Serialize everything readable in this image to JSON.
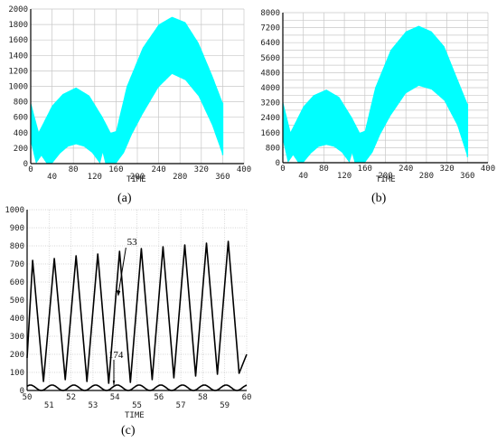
{
  "chart_data": [
    {
      "id": "a",
      "type": "area",
      "caption": "(a)",
      "xlabel": "TIME",
      "ylabel": "",
      "xlim": [
        0,
        400
      ],
      "ylim": [
        0,
        2000
      ],
      "x_ticks": [
        0,
        40,
        80,
        120,
        160,
        200,
        240,
        280,
        320,
        360,
        400
      ],
      "x_ticks_low": [
        40,
        120,
        200,
        280,
        360
      ],
      "y_ticks": [
        0,
        200,
        400,
        600,
        800,
        1000,
        1200,
        1400,
        1600,
        1800,
        2000
      ],
      "grid": true,
      "fill_color": "#00ffff",
      "upper_envelope": [
        [
          0,
          800
        ],
        [
          15,
          410
        ],
        [
          40,
          750
        ],
        [
          60,
          900
        ],
        [
          85,
          985
        ],
        [
          110,
          880
        ],
        [
          135,
          600
        ],
        [
          150,
          400
        ],
        [
          160,
          420
        ],
        [
          180,
          1000
        ],
        [
          210,
          1500
        ],
        [
          240,
          1800
        ],
        [
          265,
          1900
        ],
        [
          290,
          1830
        ],
        [
          315,
          1560
        ],
        [
          340,
          1150
        ],
        [
          360,
          790
        ]
      ],
      "lower_envelope": [
        [
          0,
          280
        ],
        [
          10,
          0
        ],
        [
          20,
          100
        ],
        [
          30,
          0
        ],
        [
          40,
          0
        ],
        [
          55,
          130
        ],
        [
          70,
          220
        ],
        [
          85,
          250
        ],
        [
          100,
          220
        ],
        [
          115,
          140
        ],
        [
          130,
          0
        ],
        [
          135,
          140
        ],
        [
          140,
          0
        ],
        [
          150,
          0
        ],
        [
          160,
          0
        ],
        [
          175,
          140
        ],
        [
          190,
          380
        ],
        [
          210,
          640
        ],
        [
          240,
          990
        ],
        [
          265,
          1160
        ],
        [
          290,
          1080
        ],
        [
          315,
          870
        ],
        [
          340,
          500
        ],
        [
          360,
          110
        ]
      ]
    },
    {
      "id": "b",
      "type": "area",
      "caption": "(b)",
      "xlabel": "TIME",
      "ylabel": "",
      "xlim": [
        0,
        400
      ],
      "ylim": [
        0,
        8000
      ],
      "x_ticks": [
        0,
        40,
        80,
        120,
        160,
        200,
        240,
        280,
        320,
        360,
        400
      ],
      "x_ticks_low": [
        40,
        120,
        200,
        280,
        360
      ],
      "y_ticks": [
        0,
        400,
        800,
        1200,
        1600,
        2000,
        2400,
        2800,
        3200,
        3600,
        4000,
        4400,
        4800,
        5200,
        5600,
        6000,
        6400,
        6800,
        7200,
        7600,
        8000
      ],
      "y_tick_labels_shown": [
        0,
        800,
        1600,
        2400,
        3200,
        4000,
        4800,
        5600,
        6400,
        7200,
        8000
      ],
      "grid": true,
      "fill_color": "#00ffff",
      "upper_envelope": [
        [
          0,
          3300
        ],
        [
          15,
          1640
        ],
        [
          40,
          3000
        ],
        [
          60,
          3600
        ],
        [
          85,
          3900
        ],
        [
          110,
          3500
        ],
        [
          135,
          2400
        ],
        [
          150,
          1600
        ],
        [
          160,
          1700
        ],
        [
          180,
          4000
        ],
        [
          210,
          6000
        ],
        [
          240,
          7000
        ],
        [
          265,
          7300
        ],
        [
          290,
          7000
        ],
        [
          315,
          6200
        ],
        [
          340,
          4500
        ],
        [
          360,
          3150
        ]
      ],
      "lower_envelope": [
        [
          0,
          1200
        ],
        [
          10,
          0
        ],
        [
          20,
          400
        ],
        [
          30,
          0
        ],
        [
          40,
          0
        ],
        [
          55,
          500
        ],
        [
          70,
          850
        ],
        [
          85,
          950
        ],
        [
          100,
          850
        ],
        [
          115,
          550
        ],
        [
          130,
          0
        ],
        [
          135,
          500
        ],
        [
          140,
          0
        ],
        [
          150,
          0
        ],
        [
          160,
          0
        ],
        [
          175,
          550
        ],
        [
          190,
          1500
        ],
        [
          210,
          2500
        ],
        [
          240,
          3700
        ],
        [
          265,
          4100
        ],
        [
          290,
          3900
        ],
        [
          315,
          3300
        ],
        [
          340,
          2000
        ],
        [
          360,
          300
        ]
      ]
    },
    {
      "id": "c",
      "type": "line",
      "caption": "(c)",
      "xlabel": "TIME",
      "ylabel": "",
      "xlim": [
        50,
        60
      ],
      "ylim": [
        0,
        1000
      ],
      "x_ticks": [
        50,
        51,
        52,
        53,
        54,
        55,
        56,
        57,
        58,
        59,
        60
      ],
      "x_ticks_high": [
        50,
        52,
        54,
        56,
        58,
        60
      ],
      "y_ticks": [
        0,
        100,
        200,
        300,
        400,
        500,
        600,
        700,
        800,
        900,
        1000
      ],
      "grid": true,
      "series": [
        {
          "name": "53",
          "period": 0.99,
          "phase": 50.25,
          "peaks": [
            720,
            730,
            745,
            755,
            770,
            785,
            795,
            805,
            815,
            825
          ],
          "troughs": [
            50,
            60,
            50,
            40,
            45,
            60,
            70,
            80,
            90,
            95
          ],
          "start_value": 180,
          "end_value": 200
        },
        {
          "name": "174",
          "period": 0.99,
          "phase": 50.15,
          "amplitude_max": 30,
          "amplitude_min": 0
        }
      ],
      "annotations": [
        {
          "text": "53",
          "target_series": "53"
        },
        {
          "text": "174",
          "target_series": "174"
        }
      ]
    }
  ]
}
